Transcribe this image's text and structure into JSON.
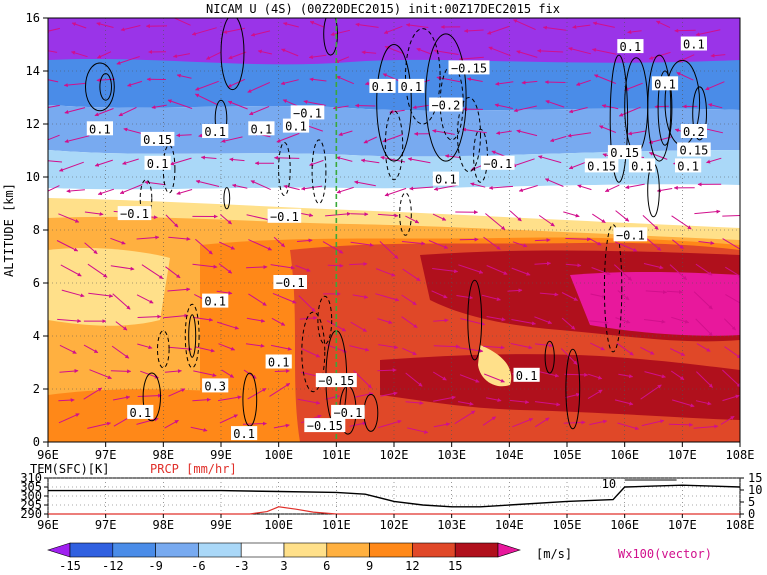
{
  "chart_data": [
    {
      "type": "heatmap",
      "title": "NICAM U (4S) (00Z20DEC2015) init:00Z17DEC2015 fix",
      "ylabel": "ALTITUDE [km]",
      "xlim": [
        96,
        108
      ],
      "ylim": [
        0,
        16
      ],
      "x_ticks": [
        "96E",
        "97E",
        "98E",
        "99E",
        "100E",
        "101E",
        "102E",
        "103E",
        "104E",
        "105E",
        "106E",
        "107E",
        "108E"
      ],
      "y_ticks": [
        "0",
        "2",
        "4",
        "6",
        "8",
        "10",
        "12",
        "14",
        "16"
      ],
      "grid": true,
      "vertical_marker_x": 101,
      "vector_label": "Wx100(vector)",
      "contour_labels": [
        {
          "x": 96.9,
          "y": 11.8,
          "text": "0.1"
        },
        {
          "x": 97.5,
          "y": 8.6,
          "text": "−0.1"
        },
        {
          "x": 97.9,
          "y": 11.4,
          "text": "0.15"
        },
        {
          "x": 97.9,
          "y": 10.5,
          "text": "0.1"
        },
        {
          "x": 98.9,
          "y": 11.7,
          "text": "0.1"
        },
        {
          "x": 99.7,
          "y": 11.8,
          "text": "0.1"
        },
        {
          "x": 100.3,
          "y": 11.9,
          "text": "0.1"
        },
        {
          "x": 100.5,
          "y": 12.4,
          "text": "−0.1"
        },
        {
          "x": 100.1,
          "y": 8.5,
          "text": "−0.1"
        },
        {
          "x": 100.2,
          "y": 6.0,
          "text": "−0.1"
        },
        {
          "x": 98.9,
          "y": 5.3,
          "text": "0.1"
        },
        {
          "x": 100.0,
          "y": 3.0,
          "text": "0.1"
        },
        {
          "x": 101.0,
          "y": 2.3,
          "text": "−0.15"
        },
        {
          "x": 98.9,
          "y": 2.1,
          "text": "0.3"
        },
        {
          "x": 97.6,
          "y": 1.1,
          "text": "0.1"
        },
        {
          "x": 99.4,
          "y": 0.3,
          "text": "0.1"
        },
        {
          "x": 100.8,
          "y": 0.6,
          "text": "−0.15"
        },
        {
          "x": 101.2,
          "y": 1.1,
          "text": "−0.1"
        },
        {
          "x": 101.8,
          "y": 13.4,
          "text": "0.1"
        },
        {
          "x": 102.3,
          "y": 13.4,
          "text": "0.1"
        },
        {
          "x": 102.9,
          "y": 12.7,
          "text": "−0.2"
        },
        {
          "x": 103.3,
          "y": 14.1,
          "text": "−0.15"
        },
        {
          "x": 102.9,
          "y": 9.9,
          "text": "0.1"
        },
        {
          "x": 103.8,
          "y": 10.5,
          "text": "−0.1"
        },
        {
          "x": 104.3,
          "y": 2.5,
          "text": "0.1"
        },
        {
          "x": 106.1,
          "y": 7.8,
          "text": "−0.1"
        },
        {
          "x": 106.1,
          "y": 14.9,
          "text": "0.1"
        },
        {
          "x": 106.7,
          "y": 13.5,
          "text": "0.1"
        },
        {
          "x": 107.2,
          "y": 15.0,
          "text": "0.1"
        },
        {
          "x": 107.2,
          "y": 11.7,
          "text": "0.2"
        },
        {
          "x": 106.0,
          "y": 10.9,
          "text": "0.15"
        },
        {
          "x": 107.2,
          "y": 11.0,
          "text": "0.15"
        },
        {
          "x": 105.6,
          "y": 10.4,
          "text": "0.15"
        },
        {
          "x": 106.3,
          "y": 10.4,
          "text": "0.1"
        },
        {
          "x": 107.1,
          "y": 10.4,
          "text": "0.1"
        }
      ]
    },
    {
      "type": "line",
      "xlim": [
        96,
        108
      ],
      "x_ticks": [
        "96E",
        "97E",
        "98E",
        "99E",
        "100E",
        "101E",
        "102E",
        "103E",
        "104E",
        "105E",
        "106E",
        "107E",
        "108E"
      ],
      "left_axis": {
        "label": "TEM(SFC)[K]",
        "ticks": [
          "310",
          "305",
          "300",
          "295",
          "290"
        ],
        "range": [
          290,
          310
        ]
      },
      "right_axis": {
        "label": "PRCP [mm/hr]",
        "ticks": [
          "15",
          "10",
          "5",
          "0"
        ],
        "range": [
          0,
          15
        ],
        "color": "#e0302a"
      },
      "annotation": "10",
      "series": [
        {
          "x": [
            96,
            97,
            98,
            99,
            100,
            101,
            101.5,
            102,
            102.5,
            103,
            103.5,
            104,
            105,
            105.8,
            106,
            106.5,
            107,
            107.5,
            108
          ],
          "values": [
            303,
            303,
            303,
            303,
            302.5,
            302,
            301,
            297,
            295,
            294,
            294,
            295,
            297,
            298,
            305,
            305.5,
            306,
            305.5,
            305
          ]
        },
        {
          "x": [
            96,
            99.5,
            99.8,
            100,
            100.3,
            100.6,
            101,
            108
          ],
          "values": [
            0,
            0,
            1,
            3,
            2,
            0.8,
            0,
            0
          ]
        }
      ]
    },
    {
      "type": "colorbar",
      "unit": "[m/s]",
      "levels": [
        "-15",
        "-12",
        "-9",
        "-6",
        "-3",
        "3",
        "6",
        "9",
        "12",
        "15"
      ],
      "colors": [
        "#a020f0",
        "#3060e0",
        "#4a8ce8",
        "#78aaf0",
        "#aad8f8",
        "#ffffff",
        "#ffe08a",
        "#ffb040",
        "#ff8818",
        "#e04828",
        "#b0101c",
        "#e8189c"
      ]
    }
  ]
}
